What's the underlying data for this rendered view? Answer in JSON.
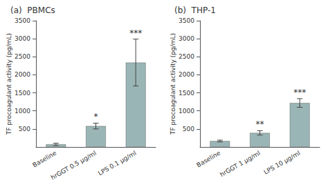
{
  "chart_data": [
    {
      "type": "bar",
      "title": "(a)  PBMCs",
      "categories": [
        "Baseline",
        "hrGGT 0.5 μg/ml",
        "LPS 0.1 μg/ml"
      ],
      "values": [
        75,
        580,
        2340
      ],
      "errors": [
        30,
        80,
        650
      ],
      "significance": [
        null,
        "*",
        "***"
      ],
      "color": "#9ab5b5",
      "ylim": [
        0,
        3500
      ],
      "yticks": [
        500,
        1000,
        1500,
        2000,
        2500,
        3000,
        3500
      ],
      "ylabel": "TF procoagulant activity (pg/mL)",
      "grid": false
    },
    {
      "type": "bar",
      "title": "(b)  THP-1",
      "categories": [
        "Baseline",
        "hrGGT 1 μg/ml",
        "LPS 10 μg/ml"
      ],
      "values": [
        165,
        390,
        1220
      ],
      "errors": [
        25,
        60,
        120
      ],
      "significance": [
        null,
        "**",
        "***"
      ],
      "color": "#9ab5b5",
      "ylim": [
        0,
        3500
      ],
      "yticks": [
        500,
        1000,
        1500,
        2000,
        2500,
        3000,
        3500
      ],
      "ylabel": "TF procoagulant activity (pg/mL)",
      "grid": false
    }
  ]
}
